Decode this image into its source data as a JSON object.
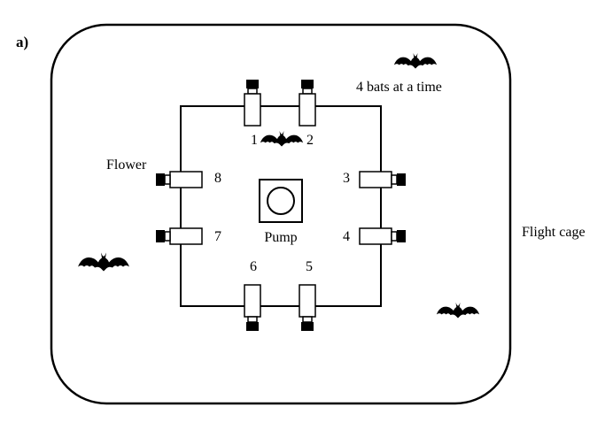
{
  "panel_label": "a)",
  "cage_label": "Flight cage",
  "bats_label": "4 bats at a time",
  "flower_label": "Flower",
  "pump_label": "Pump",
  "flowers": [
    {
      "number": "1"
    },
    {
      "number": "2"
    },
    {
      "number": "3"
    },
    {
      "number": "4"
    },
    {
      "number": "5"
    },
    {
      "number": "6"
    },
    {
      "number": "7"
    },
    {
      "number": "8"
    }
  ],
  "bats": [
    {
      "name": "bat-top-right"
    },
    {
      "name": "bat-center"
    },
    {
      "name": "bat-left"
    },
    {
      "name": "bat-bottom-right"
    }
  ]
}
